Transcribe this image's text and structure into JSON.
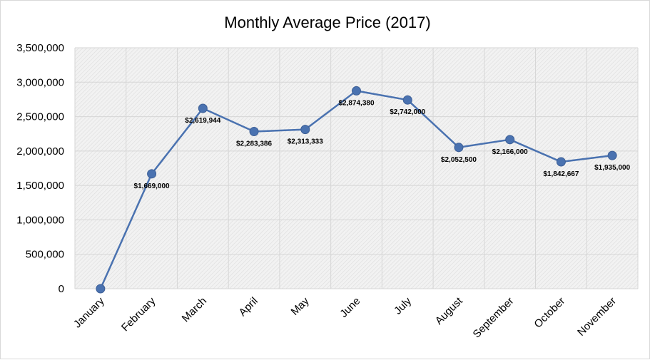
{
  "chart_data": {
    "type": "line",
    "title": "Monthly Average Price (2017)",
    "categories": [
      "January",
      "February",
      "March",
      "April",
      "May",
      "June",
      "July",
      "August",
      "September",
      "October",
      "November"
    ],
    "series": [
      {
        "values": [
          0,
          1669000,
          2619944,
          2283386,
          2313333,
          2874380,
          2742000,
          2052500,
          2166000,
          1842667,
          1935000
        ],
        "data_labels": [
          null,
          "$1,669,000",
          "$2,619,944",
          "$2,283,386",
          "$2,313,333",
          "$2,874,380",
          "$2,742,000",
          "$2,052,500",
          "$2,166,000",
          "$1,842,667",
          "$1,935,000"
        ]
      }
    ],
    "ylim": [
      0,
      3500000
    ],
    "y_ticks": [
      "0",
      "500,000",
      "1,000,000",
      "1,500,000",
      "2,000,000",
      "2,500,000",
      "3,000,000",
      "3,500,000"
    ],
    "y_tick_values": [
      0,
      500000,
      1000000,
      1500000,
      2000000,
      2500000,
      3000000,
      3500000
    ],
    "grid": true,
    "legend": "none",
    "colors": {
      "line": "#4a72b0",
      "marker": "#4a72b0",
      "plot_background": "#ececec",
      "grid": "#d6d6d6"
    }
  }
}
